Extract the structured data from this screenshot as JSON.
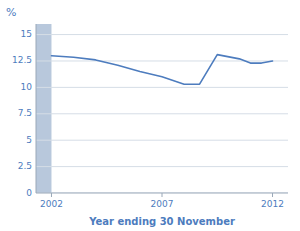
{
  "chart_data": {
    "type": "line",
    "xlabel": "Year ending 30 November",
    "ylabel": "%",
    "x": [
      2002,
      2003,
      2004,
      2005,
      2006,
      2007,
      2008,
      2008.7,
      2009.5,
      2010.5,
      2011,
      2011.5,
      2012
    ],
    "values": [
      13.0,
      12.85,
      12.6,
      12.1,
      11.5,
      11.0,
      10.3,
      10.3,
      13.1,
      12.7,
      12.3,
      12.3,
      12.5
    ],
    "color": "#4d7cbe",
    "shade": {
      "xmin": 2001.3,
      "xmax": 2002.0,
      "color": "#b8c8dc"
    },
    "xlim": [
      2001.3,
      2012.7
    ],
    "ylim": [
      0,
      16
    ],
    "xticks": [
      2002,
      2007,
      2012
    ],
    "yticks": [
      0,
      2.5,
      5,
      7.5,
      10,
      12.5,
      15
    ],
    "grid": true
  }
}
